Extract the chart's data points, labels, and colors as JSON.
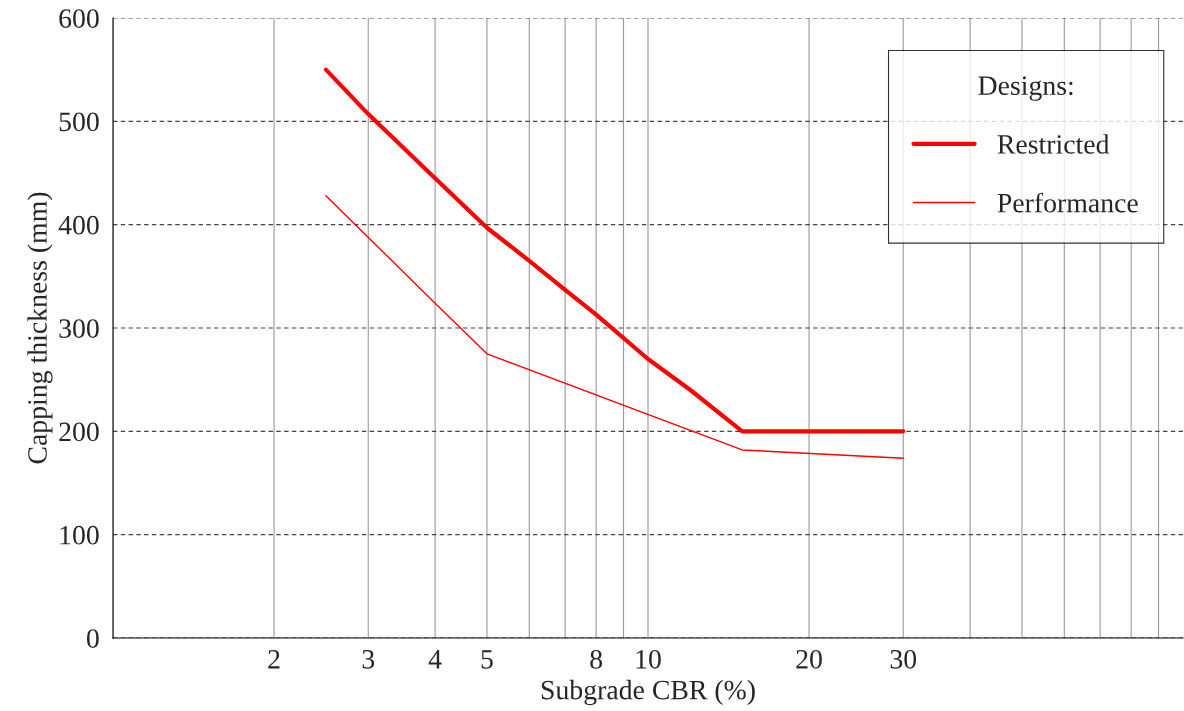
{
  "chart_data": {
    "type": "line",
    "xlabel": "Subgrade CBR (%)",
    "ylabel": "Capping thickness (mm)",
    "legend_title": "Designs:",
    "legend": "top right",
    "log": "x",
    "grid": true,
    "line_style": "solid",
    "marker": "none",
    "xlim": [
      1,
      100
    ],
    "ylim": [
      0,
      600
    ],
    "xticks": [
      {
        "value": 1,
        "label": null
      },
      2,
      3,
      4,
      5,
      {
        "value": 6,
        "label": null
      },
      {
        "value": 7,
        "label": null
      },
      8,
      {
        "value": 9,
        "label": null
      },
      10,
      20,
      30,
      {
        "value": 40,
        "label": null
      },
      {
        "value": 50,
        "label": null
      },
      {
        "value": 60,
        "label": null
      },
      {
        "value": 70,
        "label": null
      },
      {
        "value": 80,
        "label": null
      },
      {
        "value": 90,
        "label": null
      }
    ],
    "yticks": [
      0,
      100,
      200,
      300,
      400,
      500,
      600
    ],
    "series": [
      {
        "name": "Restricted",
        "color": "#ff0000",
        "x": [
          2.5,
          3,
          4,
          5,
          6,
          7,
          8,
          10,
          12,
          15,
          30
        ],
        "values": [
          550,
          507,
          445,
          397,
          365,
          337,
          313,
          270,
          240,
          200,
          200
        ]
      },
      {
        "name": "Performance",
        "color": "#ff0000",
        "x": [
          2.5,
          4,
          5,
          15,
          30
        ],
        "values": [
          428,
          324,
          275,
          182,
          174
        ]
      }
    ]
  }
}
